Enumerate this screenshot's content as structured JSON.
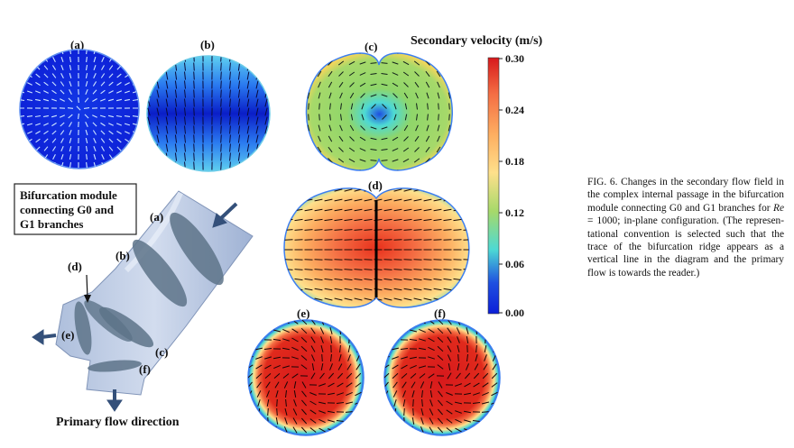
{
  "panels": [
    {
      "label": "(a)"
    },
    {
      "label": "(b)"
    },
    {
      "label": "(c)"
    },
    {
      "label": "(d)"
    },
    {
      "label": "(e)"
    },
    {
      "label": "(f)"
    }
  ],
  "colorbar": {
    "title": "Secondary velocity (m/s)",
    "ticks": [
      "0.30",
      "0.24",
      "0.18",
      "0.12",
      "0.06",
      "0.00"
    ],
    "colors": [
      "#d7191c",
      "#f46d43",
      "#fdae61",
      "#fee08b",
      "#a6d96a",
      "#4dd9d4",
      "#1e4fe0",
      "#0c1ed8"
    ]
  },
  "module": {
    "box_lines": [
      "Bifurcation module",
      "connecting G0 and",
      "G1 branches"
    ],
    "labels": [
      "(a)",
      "(b)",
      "(c)",
      "(d)",
      "(e)",
      "(f)"
    ],
    "primary_flow": "Primary flow direction"
  },
  "caption": {
    "lead": "FIG. 6.  Changes in the secondary flow field in the complex internal passage in the bifurcation module connecting G0 and G1 branches for ",
    "re_symbol": "Re",
    "re_value": " = 1000; in-plane configuration. (The represen-tational convention is selected such that the trace of the bifurcation ridge appears as a vertical line in the diagram and the primary flow is towards the reader.)"
  }
}
